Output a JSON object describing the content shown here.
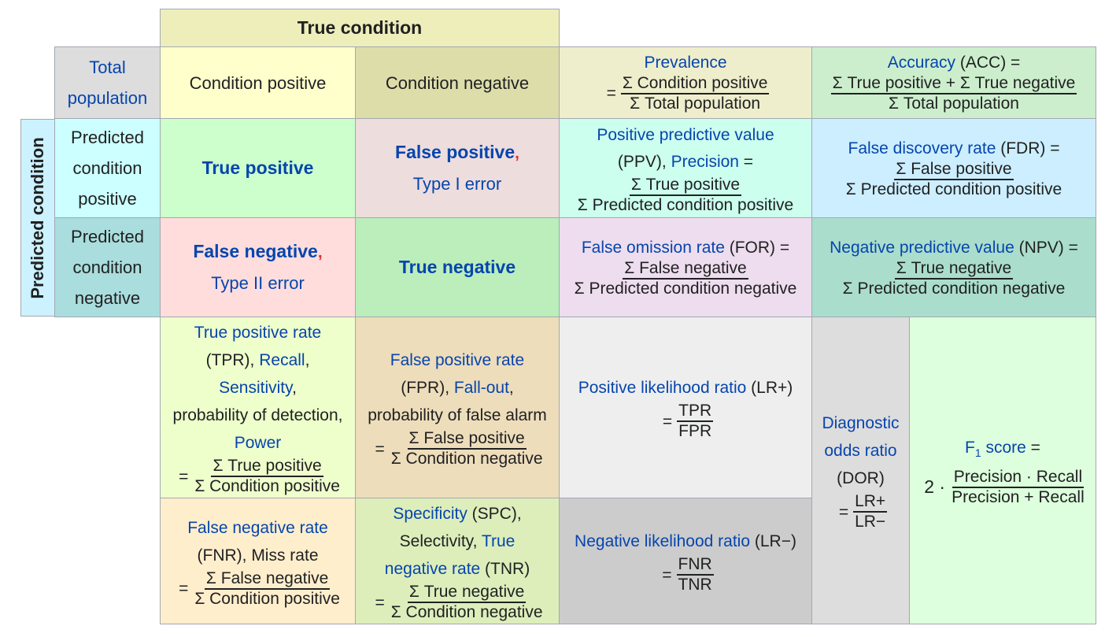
{
  "colors": {
    "true_condition_bg": "#eeeebb",
    "total_population_bg": "#dddddd",
    "condition_positive_bg": "#ffffcc",
    "condition_negative_bg": "#ddddaa",
    "prevalence_bg": "#eeeecc",
    "accuracy_bg": "#cceecc",
    "predicted_condition_bg": "#ccffff",
    "predicted_positive_bg": "#ccffff",
    "predicted_negative_bg": "#aadddd",
    "true_positive_bg": "#ccffcc",
    "false_positive_bg": "#eedddd",
    "false_negative_bg": "#ffdddd",
    "true_negative_bg": "#bbeebb",
    "ppv_bg": "#ccffee",
    "fdr_bg": "#cceeff",
    "for_bg": "#eeddee",
    "npv_bg": "#aaddcc",
    "tpr_bg": "#eeffcc",
    "fpr_bg": "#eeddbb",
    "fnr_bg": "#ffeecc",
    "spc_bg": "#ddeebb",
    "lrp_bg": "#eeeeee",
    "lrn_bg": "#cccccc",
    "dor_bg": "#dddddd",
    "f1_bg": "#ddffdd",
    "link": "#0645ad",
    "comma_red": "#dd3333"
  },
  "header": {
    "true_condition": "True condition",
    "predicted_condition": "Predicted condition"
  },
  "total_population": {
    "line1": "Total",
    "line2": "population"
  },
  "condition_positive": "Condition positive",
  "condition_negative": "Condition negative",
  "prevalence": {
    "title": "Prevalence",
    "eq": "=",
    "num": "Σ Condition positive",
    "den": "Σ Total population"
  },
  "accuracy": {
    "title": "Accuracy",
    "abbr": " (ACC) =",
    "num": "Σ True positive + Σ True negative",
    "den": "Σ Total population"
  },
  "predicted_positive": {
    "l1": "Predicted",
    "l2": "condition",
    "l3": "positive"
  },
  "predicted_negative": {
    "l1": "Predicted",
    "l2": "condition",
    "l3": "negative"
  },
  "true_positive": "True positive",
  "false_positive": {
    "title": "False positive",
    "comma": ",",
    "sub": "Type I error"
  },
  "false_negative": {
    "title": "False negative",
    "comma": ",",
    "sub": "Type II error"
  },
  "true_negative": "True negative",
  "ppv": {
    "title": "Positive predictive value",
    "abbr": "(PPV), ",
    "alt": "Precision",
    "tail": " =",
    "num": "Σ True positive",
    "den": "Σ Predicted condition positive"
  },
  "fdr": {
    "title": "False discovery rate",
    "abbr": " (FDR) =",
    "num": "Σ False positive",
    "den": "Σ Predicted condition positive"
  },
  "for": {
    "title": "False omission rate",
    "abbr": " (FOR) =",
    "num": "Σ False negative",
    "den": "Σ Predicted condition negative"
  },
  "npv": {
    "title": "Negative predictive value",
    "abbr": " (NPV) =",
    "num": "Σ True negative",
    "den": "Σ Predicted condition negative"
  },
  "tpr": {
    "title": "True positive rate",
    "abbr": "(TPR), ",
    "recall": "Recall",
    "comma1": ",",
    "sensitivity": "Sensitivity",
    "comma2": ",",
    "detection": "probability of detection,",
    "power": "Power",
    "eq": "=",
    "num": "Σ True positive",
    "den": "Σ Condition positive"
  },
  "fpr": {
    "title": "False positive rate",
    "abbr": "(FPR), ",
    "fallout": "Fall-out",
    "comma": ",",
    "alarm": "probability of false alarm",
    "eq": "=",
    "num": "Σ False positive",
    "den": "Σ Condition negative"
  },
  "lrp": {
    "title": "Positive likelihood ratio",
    "abbr": " (LR+)",
    "eq": "=",
    "num": "TPR",
    "den": "FPR"
  },
  "dor": {
    "l1": "Diagnostic",
    "l2": "odds ratio",
    "abbr": "(DOR)",
    "eq": "=",
    "num": "LR+",
    "den": "LR−"
  },
  "f1": {
    "title": "F",
    "sub": "1",
    "title2": " score",
    "tail": " =",
    "coef": "2 ·",
    "num": "Precision · Recall",
    "den": "Precision + Recall"
  },
  "fnr": {
    "title": "False negative rate",
    "abbr": "(FNR), Miss rate",
    "eq": "=",
    "num": "Σ False negative",
    "den": "Σ Condition positive"
  },
  "spc": {
    "title": "Specificity",
    "abbr": " (SPC),",
    "selectivity": "Selectivity, ",
    "tnr1": "True",
    "tnr2": "negative rate",
    "tnr_abbr": " (TNR)",
    "eq": "=",
    "num": "Σ True negative",
    "den": "Σ Condition negative"
  },
  "lrn": {
    "title": "Negative likelihood ratio",
    "abbr": " (LR−)",
    "eq": "=",
    "num": "FNR",
    "den": "TNR"
  }
}
